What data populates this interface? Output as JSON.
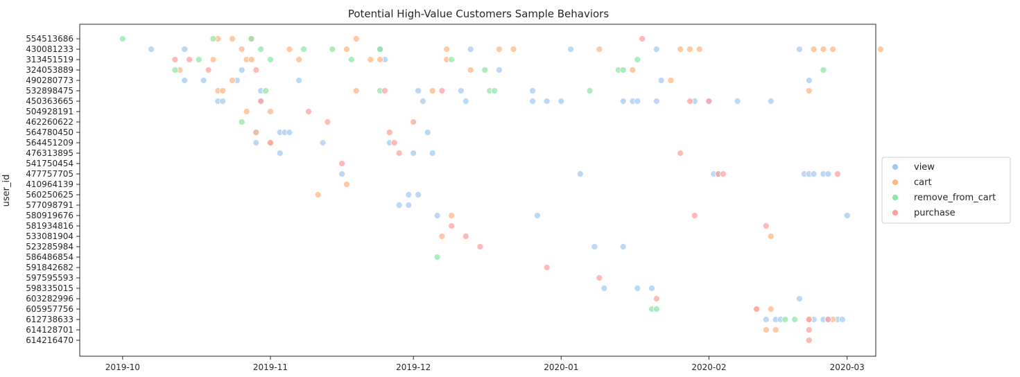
{
  "chart_data": {
    "type": "scatter",
    "title": "Potential High-Value Customers Sample Behaviors",
    "xlabel": "",
    "ylabel": "user_id",
    "xlim": [
      "2019-09-22",
      "2020-03-07"
    ],
    "x_ticks": [
      "2019-10",
      "2019-11",
      "2019-12",
      "2020-01",
      "2020-02",
      "2020-03"
    ],
    "categories": [
      "554513686",
      "430081233",
      "313451519",
      "324053889",
      "490280773",
      "532898475",
      "450363665",
      "504928191",
      "462260622",
      "564780450",
      "564451209",
      "476313895",
      "541750454",
      "477757705",
      "410964139",
      "560250625",
      "577098791",
      "580919676",
      "581934816",
      "533081904",
      "523285984",
      "586486854",
      "591842682",
      "597595593",
      "598335015",
      "603282996",
      "605957756",
      "612738633",
      "614128701",
      "614216470"
    ],
    "grid": false,
    "legend_position": "right",
    "series": [
      {
        "name": "view",
        "color": "#a1c9f4",
        "points": [
          [
            "2019-10-07",
            "430081233"
          ],
          [
            "2019-10-14",
            "430081233"
          ],
          [
            "2019-11-24",
            "430081233"
          ],
          [
            "2019-12-13",
            "430081233"
          ],
          [
            "2020-01-03",
            "430081233"
          ],
          [
            "2020-01-21",
            "430081233"
          ],
          [
            "2020-02-20",
            "430081233"
          ],
          [
            "2019-11-25",
            "313451519"
          ],
          [
            "2019-10-26",
            "324053889"
          ],
          [
            "2019-12-19",
            "324053889"
          ],
          [
            "2019-10-14",
            "490280773"
          ],
          [
            "2019-10-18",
            "490280773"
          ],
          [
            "2019-10-25",
            "490280773"
          ],
          [
            "2019-11-07",
            "490280773"
          ],
          [
            "2020-01-22",
            "490280773"
          ],
          [
            "2020-02-22",
            "490280773"
          ],
          [
            "2019-10-30",
            "532898475"
          ],
          [
            "2019-12-02",
            "532898475"
          ],
          [
            "2019-12-11",
            "532898475"
          ],
          [
            "2019-12-26",
            "532898475"
          ],
          [
            "2019-10-21",
            "450363665"
          ],
          [
            "2019-10-22",
            "450363665"
          ],
          [
            "2019-10-30",
            "450363665"
          ],
          [
            "2019-12-03",
            "450363665"
          ],
          [
            "2019-12-12",
            "450363665"
          ],
          [
            "2019-12-26",
            "450363665"
          ],
          [
            "2019-12-29",
            "450363665"
          ],
          [
            "2020-01-01",
            "450363665"
          ],
          [
            "2020-01-14",
            "450363665"
          ],
          [
            "2020-01-16",
            "450363665"
          ],
          [
            "2020-01-17",
            "450363665"
          ],
          [
            "2020-01-21",
            "450363665"
          ],
          [
            "2020-01-29",
            "450363665"
          ],
          [
            "2020-02-01",
            "450363665"
          ],
          [
            "2020-02-07",
            "450363665"
          ],
          [
            "2020-02-14",
            "450363665"
          ],
          [
            "2019-10-29",
            "564780450"
          ],
          [
            "2019-11-03",
            "564780450"
          ],
          [
            "2019-11-04",
            "564780450"
          ],
          [
            "2019-11-05",
            "564780450"
          ],
          [
            "2019-12-04",
            "564780450"
          ],
          [
            "2019-10-29",
            "564451209"
          ],
          [
            "2019-11-12",
            "564451209"
          ],
          [
            "2019-11-26",
            "564451209"
          ],
          [
            "2019-11-03",
            "476313895"
          ],
          [
            "2019-12-01",
            "476313895"
          ],
          [
            "2019-12-05",
            "476313895"
          ],
          [
            "2019-11-16",
            "477757705"
          ],
          [
            "2020-01-05",
            "477757705"
          ],
          [
            "2020-02-02",
            "477757705"
          ],
          [
            "2020-02-03",
            "477757705"
          ],
          [
            "2020-02-21",
            "477757705"
          ],
          [
            "2020-02-22",
            "477757705"
          ],
          [
            "2020-02-23",
            "477757705"
          ],
          [
            "2020-02-25",
            "477757705"
          ],
          [
            "2020-02-26",
            "477757705"
          ],
          [
            "2019-11-30",
            "560250625"
          ],
          [
            "2019-12-02",
            "560250625"
          ],
          [
            "2019-11-28",
            "577098791"
          ],
          [
            "2019-11-30",
            "577098791"
          ],
          [
            "2019-12-06",
            "580919676"
          ],
          [
            "2019-12-27",
            "580919676"
          ],
          [
            "2020-03-01",
            "580919676"
          ],
          [
            "2020-01-08",
            "523285984"
          ],
          [
            "2020-01-14",
            "523285984"
          ],
          [
            "2020-01-10",
            "598335015"
          ],
          [
            "2020-01-20",
            "598335015"
          ],
          [
            "2020-01-17",
            "598335015"
          ],
          [
            "2020-02-20",
            "603282996"
          ],
          [
            "2020-02-13",
            "612738633"
          ],
          [
            "2020-02-15",
            "612738633"
          ],
          [
            "2020-02-16",
            "612738633"
          ],
          [
            "2020-02-23",
            "612738633"
          ],
          [
            "2020-02-25",
            "612738633"
          ],
          [
            "2020-02-26",
            "612738633"
          ],
          [
            "2020-02-28",
            "612738633"
          ],
          [
            "2020-02-29",
            "612738633"
          ]
        ]
      },
      {
        "name": "cart",
        "color": "#ffb482",
        "points": [
          [
            "2019-10-21",
            "554513686"
          ],
          [
            "2019-10-24",
            "554513686"
          ],
          [
            "2019-10-28",
            "554513686"
          ],
          [
            "2019-11-19",
            "554513686"
          ],
          [
            "2019-10-26",
            "430081233"
          ],
          [
            "2019-11-05",
            "430081233"
          ],
          [
            "2019-11-17",
            "430081233"
          ],
          [
            "2019-12-08",
            "430081233"
          ],
          [
            "2019-12-19",
            "430081233"
          ],
          [
            "2019-12-22",
            "430081233"
          ],
          [
            "2020-01-09",
            "430081233"
          ],
          [
            "2020-01-26",
            "430081233"
          ],
          [
            "2020-01-28",
            "430081233"
          ],
          [
            "2020-01-30",
            "430081233"
          ],
          [
            "2020-02-23",
            "430081233"
          ],
          [
            "2020-02-25",
            "430081233"
          ],
          [
            "2020-02-27",
            "430081233"
          ],
          [
            "2020-03-08",
            "430081233"
          ],
          [
            "2019-10-20",
            "313451519"
          ],
          [
            "2019-10-27",
            "313451519"
          ],
          [
            "2019-10-28",
            "313451519"
          ],
          [
            "2019-11-07",
            "313451519"
          ],
          [
            "2019-11-22",
            "313451519"
          ],
          [
            "2019-11-24",
            "313451519"
          ],
          [
            "2019-12-08",
            "313451519"
          ],
          [
            "2019-10-13",
            "324053889"
          ],
          [
            "2019-12-13",
            "324053889"
          ],
          [
            "2020-01-16",
            "324053889"
          ],
          [
            "2019-10-24",
            "490280773"
          ],
          [
            "2020-01-24",
            "490280773"
          ],
          [
            "2019-10-21",
            "532898475"
          ],
          [
            "2019-10-22",
            "532898475"
          ],
          [
            "2019-11-19",
            "532898475"
          ],
          [
            "2019-12-05",
            "532898475"
          ],
          [
            "2020-02-22",
            "532898475"
          ],
          [
            "2019-10-27",
            "504928191"
          ],
          [
            "2019-11-01",
            "504928191"
          ],
          [
            "2019-10-29",
            "564780450"
          ],
          [
            "2019-11-01",
            "564451209"
          ],
          [
            "2019-11-17",
            "410964139"
          ],
          [
            "2019-11-11",
            "560250625"
          ],
          [
            "2019-12-09",
            "580919676"
          ],
          [
            "2019-12-07",
            "533081904"
          ],
          [
            "2020-02-14",
            "533081904"
          ],
          [
            "2020-02-11",
            "605957756"
          ],
          [
            "2020-02-14",
            "605957756"
          ],
          [
            "2020-02-22",
            "612738633"
          ],
          [
            "2020-02-27",
            "612738633"
          ],
          [
            "2020-02-13",
            "614128701"
          ],
          [
            "2020-02-15",
            "614128701"
          ]
        ]
      },
      {
        "name": "remove_from_cart",
        "color": "#8de5a1",
        "points": [
          [
            "2019-10-01",
            "554513686"
          ],
          [
            "2019-10-20",
            "554513686"
          ],
          [
            "2019-10-28",
            "554513686"
          ],
          [
            "2019-10-17",
            "313451519"
          ],
          [
            "2019-11-01",
            "313451519"
          ],
          [
            "2019-11-18",
            "313451519"
          ],
          [
            "2019-12-09",
            "313451519"
          ],
          [
            "2020-01-17",
            "313451519"
          ],
          [
            "2019-10-12",
            "324053889"
          ],
          [
            "2019-12-16",
            "324053889"
          ],
          [
            "2020-01-13",
            "324053889"
          ],
          [
            "2020-01-14",
            "324053889"
          ],
          [
            "2020-02-25",
            "324053889"
          ],
          [
            "2019-10-30",
            "430081233"
          ],
          [
            "2019-11-08",
            "430081233"
          ],
          [
            "2019-11-14",
            "430081233"
          ],
          [
            "2019-11-24",
            "430081233"
          ],
          [
            "2019-10-31",
            "532898475"
          ],
          [
            "2019-11-24",
            "532898475"
          ],
          [
            "2019-12-17",
            "532898475"
          ],
          [
            "2019-12-18",
            "532898475"
          ],
          [
            "2020-01-07",
            "532898475"
          ],
          [
            "2019-10-26",
            "462260622"
          ],
          [
            "2019-12-06",
            "586486854"
          ],
          [
            "2020-01-20",
            "605957756"
          ],
          [
            "2020-01-21",
            "605957756"
          ],
          [
            "2020-02-17",
            "612738633"
          ],
          [
            "2020-02-19",
            "612738633"
          ]
        ]
      },
      {
        "name": "purchase",
        "color": "#ff9f9b",
        "points": [
          [
            "2019-10-12",
            "313451519"
          ],
          [
            "2019-10-15",
            "313451519"
          ],
          [
            "2019-10-19",
            "324053889"
          ],
          [
            "2019-10-29",
            "324053889"
          ],
          [
            "2019-11-25",
            "532898475"
          ],
          [
            "2019-12-07",
            "532898475"
          ],
          [
            "2019-10-30",
            "450363665"
          ],
          [
            "2020-01-28",
            "450363665"
          ],
          [
            "2020-02-01",
            "450363665"
          ],
          [
            "2019-11-09",
            "504928191"
          ],
          [
            "2019-11-13",
            "462260622"
          ],
          [
            "2019-12-01",
            "462260622"
          ],
          [
            "2019-11-26",
            "564780450"
          ],
          [
            "2019-11-27",
            "564451209"
          ],
          [
            "2019-11-01",
            "564451209"
          ],
          [
            "2019-11-28",
            "476313895"
          ],
          [
            "2020-01-26",
            "476313895"
          ],
          [
            "2019-11-16",
            "541750454"
          ],
          [
            "2020-02-03",
            "477757705"
          ],
          [
            "2020-02-04",
            "477757705"
          ],
          [
            "2020-02-28",
            "477757705"
          ],
          [
            "2020-01-29",
            "580919676"
          ],
          [
            "2019-12-09",
            "581934816"
          ],
          [
            "2020-02-13",
            "581934816"
          ],
          [
            "2019-12-12",
            "533081904"
          ],
          [
            "2019-12-15",
            "523285984"
          ],
          [
            "2019-12-29",
            "591842682"
          ],
          [
            "2020-01-09",
            "597595593"
          ],
          [
            "2020-01-21",
            "603282996"
          ],
          [
            "2020-02-11",
            "605957756"
          ],
          [
            "2020-02-22",
            "612738633"
          ],
          [
            "2020-02-26",
            "612738633"
          ],
          [
            "2020-02-22",
            "614128701"
          ],
          [
            "2020-02-22",
            "614216470"
          ],
          [
            "2020-01-18",
            "554513686"
          ]
        ]
      }
    ]
  }
}
